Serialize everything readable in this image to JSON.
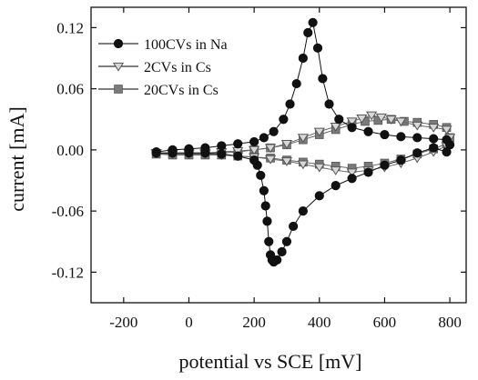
{
  "chart_data": {
    "type": "scatter",
    "xlabel": "potential vs SCE [mV]",
    "ylabel": "current [mA]",
    "xlim": [
      -300,
      850
    ],
    "ylim": [
      -0.15,
      0.14
    ],
    "xticks": [
      -200,
      0,
      200,
      400,
      600,
      800
    ],
    "yticks": [
      -0.12,
      -0.06,
      0.0,
      0.06,
      0.12
    ],
    "xtick_labels": [
      "-200",
      "0",
      "200",
      "400",
      "600",
      "800"
    ],
    "ytick_labels": [
      "-0.12",
      "-0.06",
      "0.00",
      "0.06",
      "0.12"
    ],
    "grid": false,
    "legend_position": "top-left",
    "series": [
      {
        "name": "100CVs in Na",
        "marker": "circle",
        "color": "#111111",
        "x": [
          -100,
          -50,
          0,
          50,
          100,
          150,
          200,
          230,
          260,
          290,
          310,
          330,
          350,
          365,
          380,
          395,
          410,
          430,
          460,
          500,
          550,
          600,
          650,
          700,
          750,
          790,
          800,
          790,
          750,
          700,
          650,
          600,
          550,
          500,
          450,
          400,
          350,
          320,
          300,
          285,
          270,
          260,
          255,
          250,
          245,
          240,
          235,
          230,
          220,
          210,
          200,
          150,
          100,
          50,
          0,
          -50,
          -100
        ],
        "y": [
          -0.002,
          0.0,
          0.001,
          0.002,
          0.004,
          0.006,
          0.008,
          0.012,
          0.018,
          0.03,
          0.045,
          0.065,
          0.09,
          0.115,
          0.125,
          0.1,
          0.07,
          0.045,
          0.03,
          0.022,
          0.018,
          0.015,
          0.013,
          0.012,
          0.011,
          0.01,
          0.005,
          -0.002,
          0.002,
          -0.003,
          -0.01,
          -0.015,
          -0.022,
          -0.028,
          -0.035,
          -0.045,
          -0.06,
          -0.075,
          -0.09,
          -0.1,
          -0.108,
          -0.11,
          -0.108,
          -0.103,
          -0.09,
          -0.07,
          -0.055,
          -0.04,
          -0.025,
          -0.015,
          -0.01,
          -0.006,
          -0.004,
          -0.003,
          -0.003,
          -0.003,
          -0.003
        ]
      },
      {
        "name": "2CVs in Cs",
        "marker": "triangle-down",
        "color": "#ffffff",
        "x": [
          -100,
          -50,
          0,
          50,
          100,
          150,
          200,
          250,
          300,
          350,
          400,
          450,
          500,
          530,
          560,
          590,
          620,
          650,
          700,
          750,
          790,
          800,
          790,
          750,
          700,
          650,
          600,
          550,
          500,
          450,
          400,
          350,
          300,
          250,
          200,
          150,
          100,
          50,
          0,
          -50,
          -100
        ],
        "y": [
          -0.003,
          -0.003,
          -0.003,
          -0.003,
          -0.002,
          -0.001,
          0.0,
          0.002,
          0.006,
          0.012,
          0.018,
          0.023,
          0.028,
          0.031,
          0.034,
          0.032,
          0.03,
          0.028,
          0.024,
          0.022,
          0.02,
          0.012,
          0.004,
          -0.002,
          -0.008,
          -0.013,
          -0.017,
          -0.02,
          -0.022,
          -0.02,
          -0.017,
          -0.014,
          -0.011,
          -0.009,
          -0.007,
          -0.006,
          -0.005,
          -0.004,
          -0.004,
          -0.004,
          -0.003
        ]
      },
      {
        "name": "20CVs in Cs",
        "marker": "square",
        "color": "#7a7a7a",
        "x": [
          -100,
          -50,
          0,
          50,
          100,
          150,
          200,
          250,
          300,
          350,
          400,
          450,
          500,
          540,
          580,
          620,
          660,
          700,
          750,
          790,
          800,
          790,
          750,
          700,
          650,
          600,
          550,
          500,
          450,
          400,
          350,
          300,
          250,
          200,
          150,
          100,
          50,
          0,
          -50,
          -100
        ],
        "y": [
          -0.004,
          -0.004,
          -0.004,
          -0.004,
          -0.003,
          -0.002,
          0.0,
          0.002,
          0.005,
          0.01,
          0.015,
          0.02,
          0.025,
          0.028,
          0.029,
          0.03,
          0.028,
          0.027,
          0.025,
          0.022,
          0.012,
          0.006,
          0.001,
          -0.004,
          -0.009,
          -0.013,
          -0.016,
          -0.018,
          -0.016,
          -0.014,
          -0.012,
          -0.01,
          -0.008,
          -0.007,
          -0.006,
          -0.005,
          -0.005,
          -0.005,
          -0.005,
          -0.004
        ]
      }
    ]
  }
}
